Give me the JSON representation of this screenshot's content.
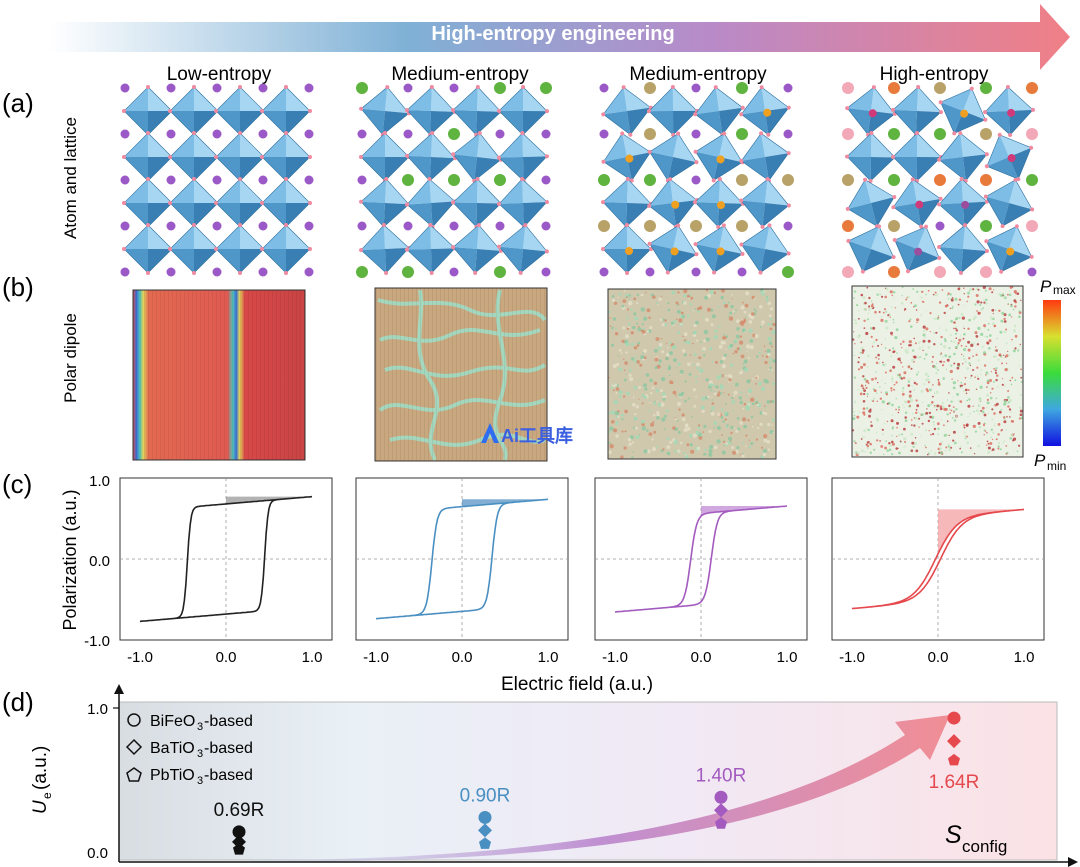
{
  "banner": {
    "label": "High-entropy engineering"
  },
  "panel_labels": [
    "(a)",
    "(b)",
    "(c)",
    "(d)"
  ],
  "columns": [
    {
      "title": "Low-entropy",
      "color": "#222222"
    },
    {
      "title": "Medium-entropy",
      "color": "#4a8fc2"
    },
    {
      "title": "Medium-entropy",
      "color": "#a35bbf"
    },
    {
      "title": "High-entropy",
      "color": "#e5484d"
    }
  ],
  "row_labels": {
    "atom": "Atom and lattice",
    "dipole": "Polar dipole",
    "polarization": "Polarization (a.u.)"
  },
  "colorbar": {
    "max_label": "P",
    "max_sub": "max",
    "min_label": "P",
    "min_sub": "min"
  },
  "watermark": "Ai工具库",
  "hysteresis": {
    "x_ticks": [
      "-1.0",
      "0.0",
      "1.0"
    ],
    "y_ticks": [
      "1.0",
      "0.0",
      "-1.0"
    ],
    "xlabel": "Electric field (a.u.)",
    "loops": [
      {
        "ec": 0.45,
        "pmax": 0.82,
        "pr": 0.78,
        "sharp": 0.04,
        "fill": "#9a9a9a"
      },
      {
        "ec": 0.35,
        "pmax": 0.78,
        "pr": 0.7,
        "sharp": 0.06,
        "fill": "#5a93c4"
      },
      {
        "ec": 0.12,
        "pmax": 0.68,
        "pr": 0.45,
        "sharp": 0.07,
        "fill": "#c08ad4"
      },
      {
        "ec": 0.03,
        "pmax": 0.63,
        "pr": 0.15,
        "sharp": 0.25,
        "fill": "#f4a0a3"
      }
    ]
  },
  "chart_data": {
    "type": "scatter",
    "ylabel": "U",
    "ylabel_sub": "e",
    "ylabel_unit": "(a.u.)",
    "xlabel": "S",
    "xlabel_sub": "config",
    "y_ticks": [
      "1.0",
      "0.0"
    ],
    "ylim": [
      0,
      1.0
    ],
    "legend": [
      {
        "marker": "circle",
        "name": "BiFeO",
        "sub": "3",
        "suffix": "-based"
      },
      {
        "marker": "diamond",
        "name": "BaTiO",
        "sub": "3",
        "suffix": "-based"
      },
      {
        "marker": "pentagon",
        "name": "PbTiO",
        "sub": "3",
        "suffix": "-based"
      }
    ],
    "groups": [
      {
        "label": "0.69R",
        "color": "#111111",
        "circle": 0.14,
        "diamond": 0.07,
        "pentagon": 0.02
      },
      {
        "label": "0.90R",
        "color": "#4a8fc2",
        "circle": 0.24,
        "diamond": 0.15,
        "pentagon": 0.06
      },
      {
        "label": "1.40R",
        "color": "#a35bbf",
        "circle": 0.38,
        "diamond": 0.29,
        "pentagon": 0.2
      },
      {
        "label": "1.64R",
        "color": "#e5484d",
        "circle": 0.93,
        "diamond": 0.77,
        "pentagon": 0.64
      }
    ]
  }
}
